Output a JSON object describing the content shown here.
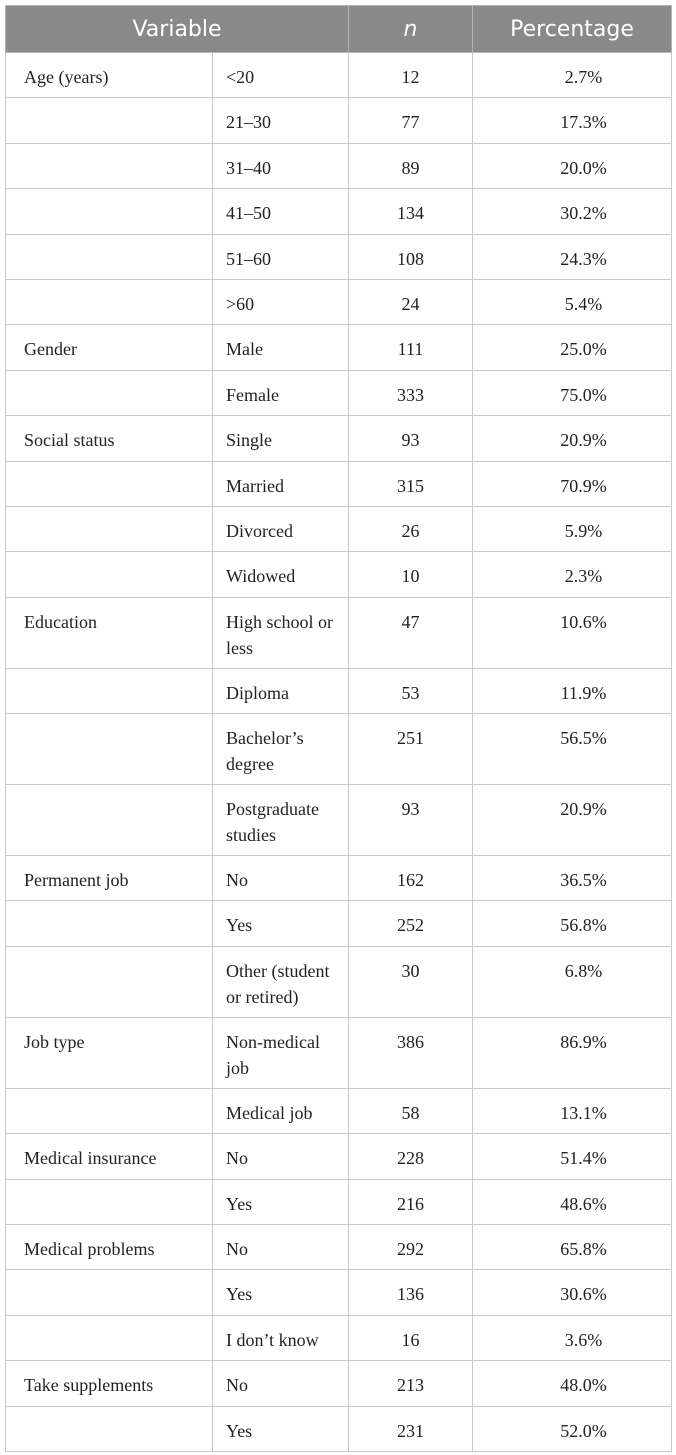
{
  "table": {
    "headers": {
      "variable": "Variable",
      "n": "n",
      "percentage": "Percentage"
    },
    "rows": [
      {
        "variable": "Age (years)",
        "category": "<20",
        "n": "12",
        "percentage": "2.7%",
        "lines": 1
      },
      {
        "variable": "",
        "category": "21–30",
        "n": "77",
        "percentage": "17.3%",
        "lines": 1
      },
      {
        "variable": "",
        "category": "31–40",
        "n": "89",
        "percentage": "20.0%",
        "lines": 1
      },
      {
        "variable": "",
        "category": "41–50",
        "n": "134",
        "percentage": "30.2%",
        "lines": 1
      },
      {
        "variable": "",
        "category": "51–60",
        "n": "108",
        "percentage": "24.3%",
        "lines": 1
      },
      {
        "variable": "",
        "category": ">60",
        "n": "24",
        "percentage": "5.4%",
        "lines": 1
      },
      {
        "variable": "Gender",
        "category": "Male",
        "n": "111",
        "percentage": "25.0%",
        "lines": 1
      },
      {
        "variable": "",
        "category": "Female",
        "n": "333",
        "percentage": "75.0%",
        "lines": 1
      },
      {
        "variable": "Social status",
        "category": "Single",
        "n": "93",
        "percentage": "20.9%",
        "lines": 1
      },
      {
        "variable": "",
        "category": "Married",
        "n": "315",
        "percentage": "70.9%",
        "lines": 1
      },
      {
        "variable": "",
        "category": "Divorced",
        "n": "26",
        "percentage": "5.9%",
        "lines": 1
      },
      {
        "variable": "",
        "category": "Widowed",
        "n": "10",
        "percentage": "2.3%",
        "lines": 1
      },
      {
        "variable": "Education",
        "category": "High school or less",
        "n": "47",
        "percentage": "10.6%",
        "lines": 2
      },
      {
        "variable": "",
        "category": "Diploma",
        "n": "53",
        "percentage": "11.9%",
        "lines": 1
      },
      {
        "variable": "",
        "category": "Bachelor’s degree",
        "n": "251",
        "percentage": "56.5%",
        "lines": 2
      },
      {
        "variable": "",
        "category": "Postgraduate studies",
        "n": "93",
        "percentage": "20.9%",
        "lines": 2
      },
      {
        "variable": "Permanent job",
        "category": "No",
        "n": "162",
        "percentage": "36.5%",
        "lines": 1
      },
      {
        "variable": "",
        "category": "Yes",
        "n": "252",
        "percentage": "56.8%",
        "lines": 1
      },
      {
        "variable": "",
        "category": "Other (student or retired)",
        "n": "30",
        "percentage": "6.8%",
        "lines": 2
      },
      {
        "variable": "Job type",
        "category": "Non-medical job",
        "n": "386",
        "percentage": "86.9%",
        "lines": 2
      },
      {
        "variable": "",
        "category": "Medical job",
        "n": "58",
        "percentage": "13.1%",
        "lines": 1
      },
      {
        "variable": "Medical insurance",
        "category": "No",
        "n": "228",
        "percentage": "51.4%",
        "lines": 1
      },
      {
        "variable": "",
        "category": "Yes",
        "n": "216",
        "percentage": "48.6%",
        "lines": 1
      },
      {
        "variable": "Medical problems",
        "category": "No",
        "n": "292",
        "percentage": "65.8%",
        "lines": 1
      },
      {
        "variable": "",
        "category": "Yes",
        "n": "136",
        "percentage": "30.6%",
        "lines": 1
      },
      {
        "variable": "",
        "category": "I don’t know",
        "n": "16",
        "percentage": "3.6%",
        "lines": 1
      },
      {
        "variable": "Take supplements",
        "category": "No",
        "n": "213",
        "percentage": "48.0%",
        "lines": 1
      },
      {
        "variable": "",
        "category": "Yes",
        "n": "231",
        "percentage": "52.0%",
        "lines": 1
      }
    ]
  }
}
